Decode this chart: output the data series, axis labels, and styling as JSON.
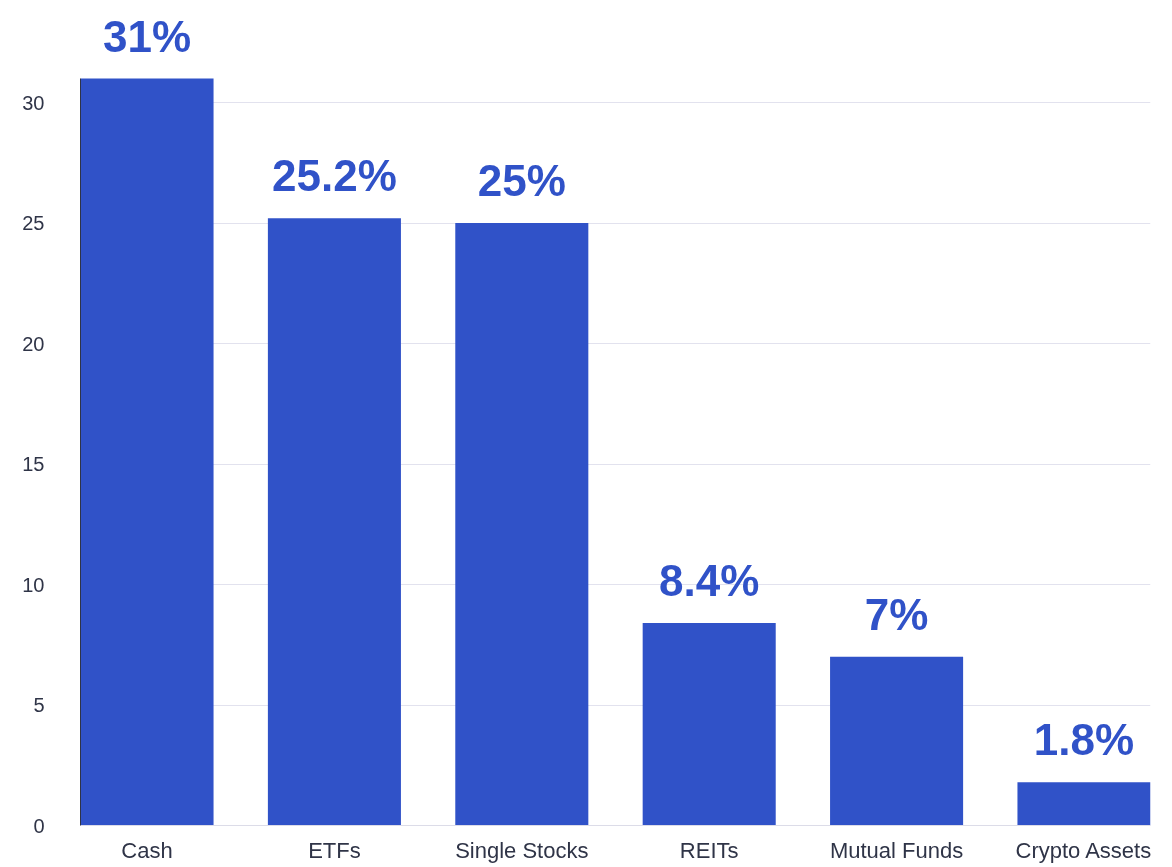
{
  "chart_data": {
    "type": "bar",
    "categories": [
      "Cash",
      "ETFs",
      "Single Stocks",
      "REITs",
      "Mutual Funds",
      "Crypto Assets"
    ],
    "values": [
      31,
      25.2,
      25,
      8.4,
      7,
      1.8
    ],
    "value_labels": [
      "31%",
      "25.2%",
      "25%",
      "8.4%",
      "7%",
      "1.8%"
    ],
    "color": "#3052c8",
    "ylim": [
      0,
      31
    ],
    "yticks": [
      0,
      5,
      10,
      15,
      20,
      25,
      30
    ],
    "grid": "y"
  }
}
